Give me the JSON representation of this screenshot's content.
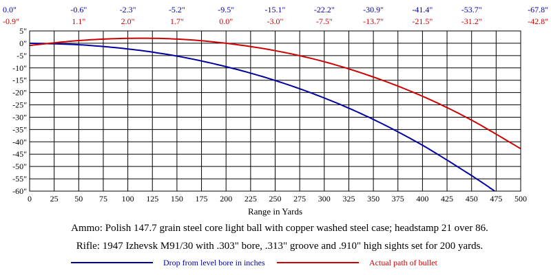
{
  "chart_data": {
    "type": "line",
    "xlabel": "Range in Yards",
    "ylabel": "",
    "xlim": [
      0,
      500
    ],
    "ylim": [
      -60,
      5
    ],
    "x_ticks": [
      0,
      25,
      50,
      75,
      100,
      125,
      150,
      175,
      200,
      225,
      250,
      275,
      300,
      325,
      350,
      375,
      400,
      425,
      450,
      475,
      500
    ],
    "y_ticks": [
      5,
      0,
      -5,
      -10,
      -15,
      -20,
      -25,
      -30,
      -35,
      -40,
      -45,
      -50,
      -55,
      -60
    ],
    "y_tick_labels": [
      "5\"",
      "0\"",
      "-5\"",
      "-10\"",
      "-15\"",
      "-20\"",
      "-25\"",
      "-30\"",
      "-35\"",
      "-40\"",
      "-45\"",
      "-50\"",
      "-55\"",
      "-60\""
    ],
    "grid": true,
    "top_annotations": {
      "x": [
        0,
        50,
        100,
        150,
        200,
        250,
        300,
        350,
        400,
        450,
        500
      ],
      "drop_labels": [
        "0.0\"",
        "-0.6\"",
        "-2.3\"",
        "-5.2\"",
        "-9.5\"",
        "-15.1\"",
        "-22.2\"",
        "-30.9\"",
        "-41.4\"",
        "-53.7\"",
        "-67.8\""
      ],
      "path_labels": [
        "-0.9\"",
        "1.1\"",
        "2.0\"",
        "1.7\"",
        "0.0\"",
        "-3.0\"",
        "-7.5\"",
        "-13.7\"",
        "-21.5\"",
        "-31.2\"",
        "-42.8\""
      ],
      "drop_color": "#0000a0",
      "path_color": "#cc0000"
    },
    "series": [
      {
        "name": "Drop from level bore in inches",
        "color": "#0000a0",
        "x": [
          0,
          50,
          100,
          150,
          200,
          250,
          300,
          350,
          400,
          450,
          475
        ],
        "y": [
          0.0,
          -0.6,
          -2.3,
          -5.2,
          -9.5,
          -15.1,
          -22.2,
          -30.9,
          -41.4,
          -53.7,
          -60.4
        ]
      },
      {
        "name": "Actual path of bullet",
        "color": "#cc0000",
        "x": [
          0,
          50,
          100,
          150,
          200,
          250,
          300,
          350,
          400,
          450,
          500
        ],
        "y": [
          -0.9,
          1.1,
          2.0,
          1.7,
          0.0,
          -3.0,
          -7.5,
          -13.7,
          -21.5,
          -31.2,
          -42.8
        ]
      }
    ]
  },
  "captions": {
    "ammo": "Ammo:  Polish 147.7 grain steel core light ball with copper washed steel case; headstamp 21 over 86.",
    "rifle": "Rifle:  1947 Izhevsk M91/30 with .303\" bore, .313\" groove and .910\" high sights set for 200 yards."
  }
}
